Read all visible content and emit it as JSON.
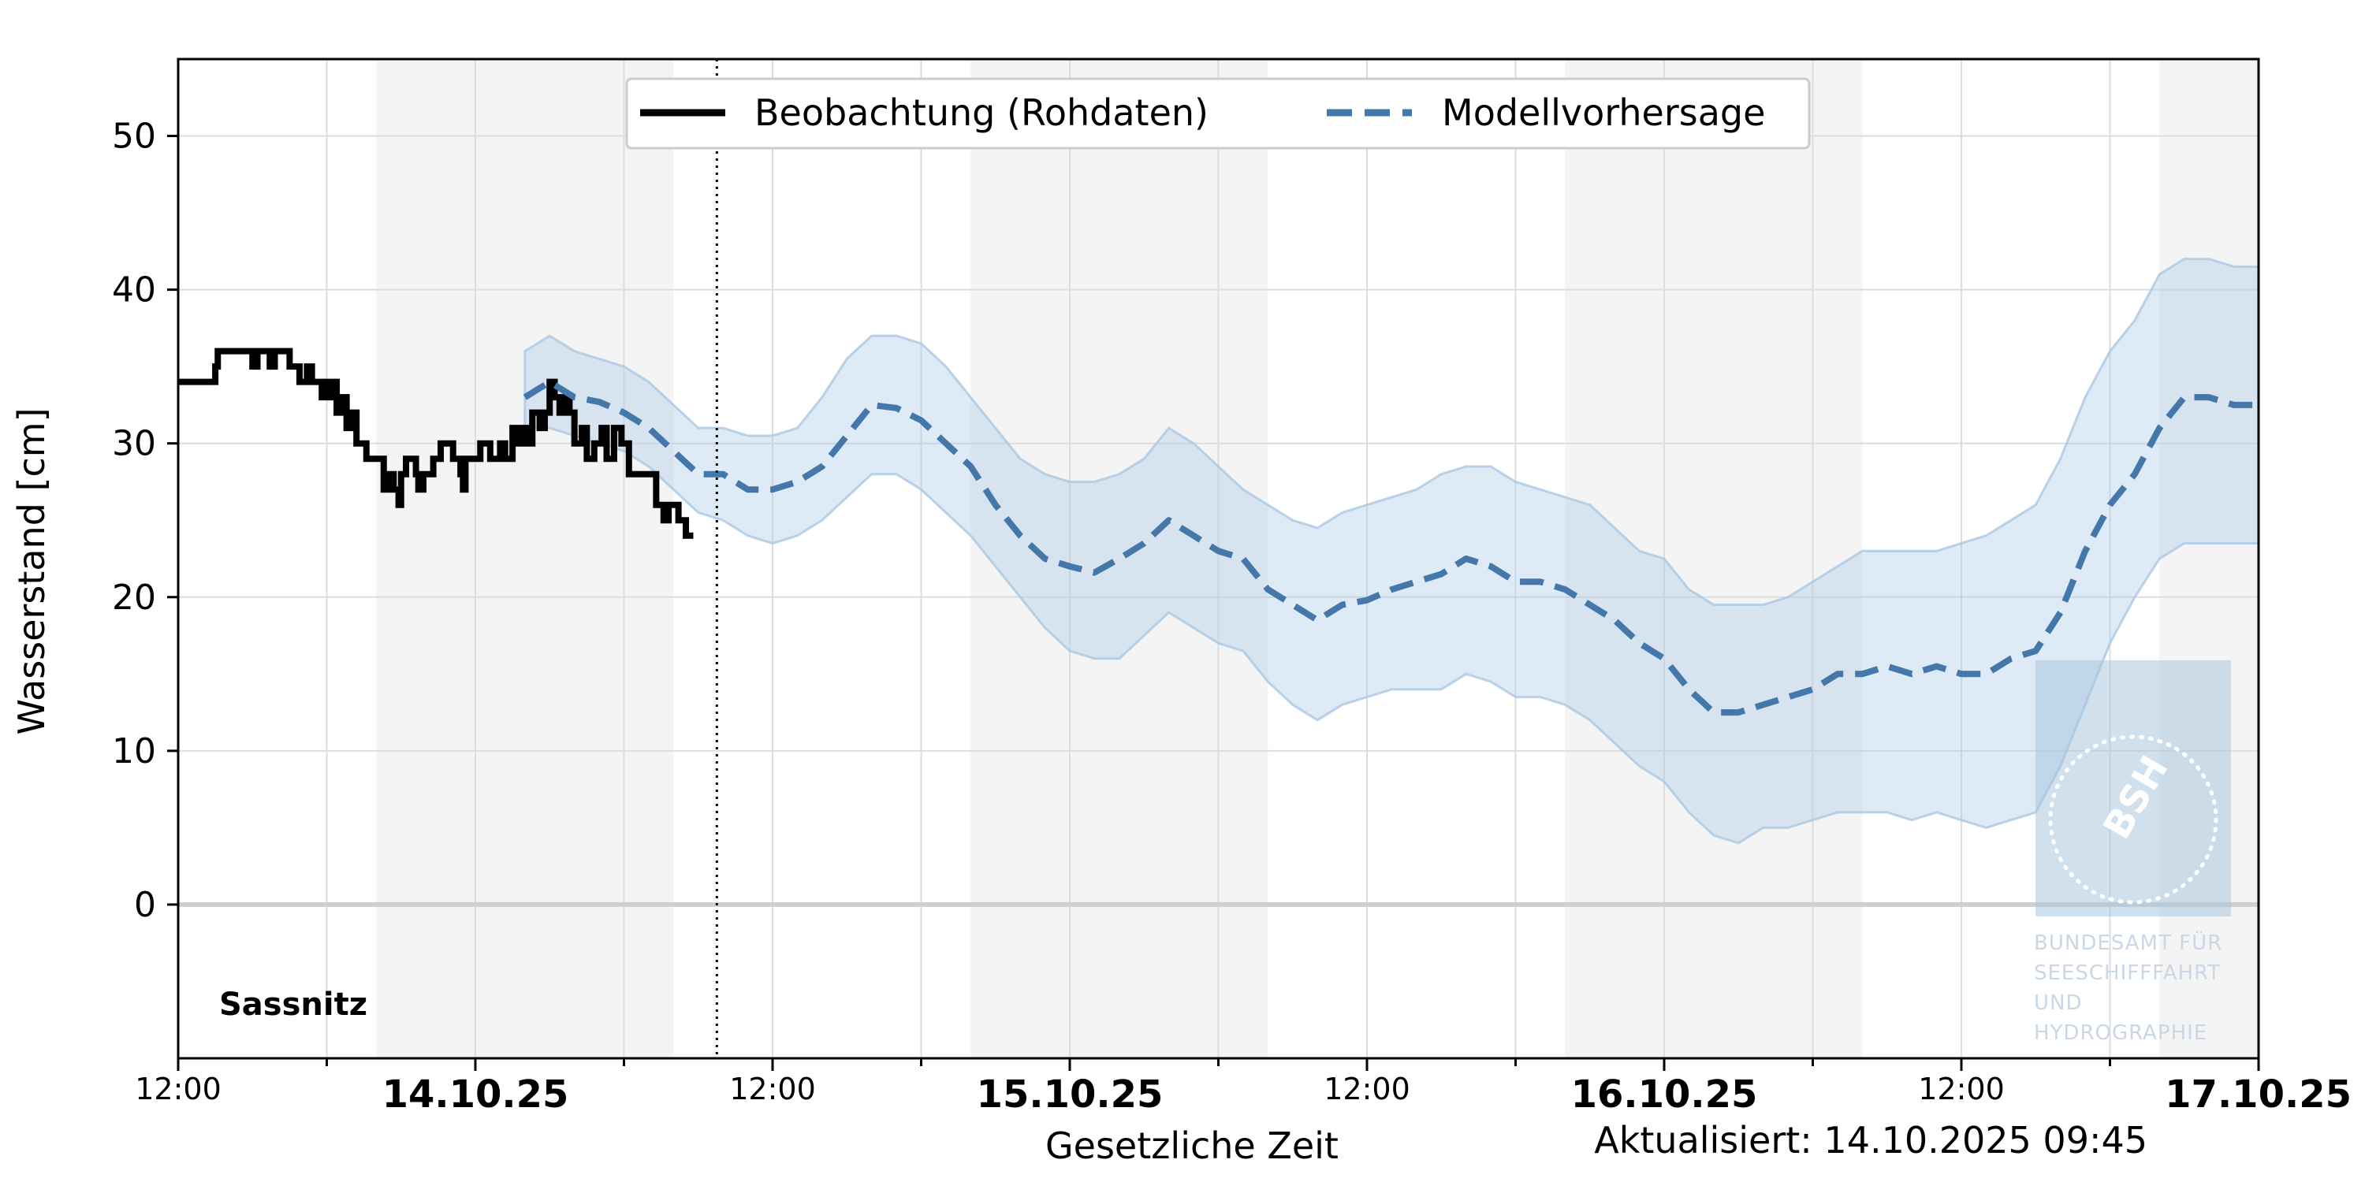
{
  "station": "Sassnitz",
  "updated": "Aktualisiert: 14.10.2025 09:45",
  "watermark": {
    "logo": "BSH",
    "lines": [
      "BUNDESAMT FÜR",
      "SEESCHIFFFAHRT",
      "UND",
      "HYDROGRAPHIE"
    ]
  },
  "colors": {
    "observation": "#000000",
    "forecast": "#4477aa",
    "band": "#a9c8e4",
    "night_shade": "#f4f4f4",
    "grid": "#dddddd",
    "zero_line": "#cfcfcf"
  },
  "chart_data": {
    "type": "line",
    "xlabel": "Gesetzliche Zeit",
    "ylabel": "Wasserstand [cm]",
    "x_unit": "hours since 13.10.2025 12:00",
    "xlim": [
      0,
      84
    ],
    "ylim": [
      -10,
      55
    ],
    "yticks": [
      0,
      10,
      20,
      30,
      40,
      50
    ],
    "xticks": [
      {
        "x": 0,
        "label": "12:00",
        "bold": false
      },
      {
        "x": 12,
        "label": "14.10.25",
        "bold": true
      },
      {
        "x": 24,
        "label": "12:00",
        "bold": false
      },
      {
        "x": 36,
        "label": "15.10.25",
        "bold": true
      },
      {
        "x": 48,
        "label": "12:00",
        "bold": false
      },
      {
        "x": 60,
        "label": "16.10.25",
        "bold": true
      },
      {
        "x": 72,
        "label": "12:00",
        "bold": false
      },
      {
        "x": 84,
        "label": "17.10.25",
        "bold": true
      }
    ],
    "night_periods": [
      [
        8,
        20
      ],
      [
        32,
        44
      ],
      [
        56,
        68
      ],
      [
        80,
        84
      ]
    ],
    "now_line_x": 21.75,
    "legend": {
      "placement": "top-center",
      "entries": [
        "Beobachtung (Rohdaten)",
        "Modellvorhersage"
      ]
    },
    "grid": true,
    "series": [
      {
        "name": "Beobachtung (Rohdaten)",
        "style": "step",
        "points": [
          [
            0,
            34
          ],
          [
            1.4,
            34
          ],
          [
            1.5,
            35
          ],
          [
            1.6,
            36
          ],
          [
            2.9,
            36
          ],
          [
            3,
            35
          ],
          [
            3.2,
            36
          ],
          [
            3.7,
            35
          ],
          [
            3.9,
            36
          ],
          [
            4.5,
            35
          ],
          [
            4.9,
            34
          ],
          [
            5.2,
            35
          ],
          [
            5.4,
            34
          ],
          [
            5.8,
            33
          ],
          [
            6,
            34
          ],
          [
            6.2,
            33
          ],
          [
            6.3,
            34
          ],
          [
            6.4,
            32
          ],
          [
            6.6,
            33
          ],
          [
            6.8,
            31
          ],
          [
            7,
            32
          ],
          [
            7.2,
            30
          ],
          [
            7.6,
            29
          ],
          [
            8.2,
            29
          ],
          [
            8.3,
            27
          ],
          [
            8.5,
            28
          ],
          [
            8.7,
            27
          ],
          [
            8.9,
            26
          ],
          [
            9,
            28
          ],
          [
            9.2,
            29
          ],
          [
            9.6,
            28
          ],
          [
            9.7,
            27
          ],
          [
            9.9,
            28
          ],
          [
            10.3,
            29
          ],
          [
            10.6,
            30
          ],
          [
            11.1,
            29
          ],
          [
            11.4,
            28
          ],
          [
            11.5,
            27
          ],
          [
            11.6,
            29
          ],
          [
            12,
            29
          ],
          [
            12.2,
            30
          ],
          [
            12.6,
            29
          ],
          [
            13,
            30
          ],
          [
            13.2,
            29
          ],
          [
            13.5,
            31
          ],
          [
            13.7,
            30
          ],
          [
            13.9,
            31
          ],
          [
            14.1,
            30
          ],
          [
            14.3,
            32
          ],
          [
            14.6,
            31
          ],
          [
            14.8,
            32
          ],
          [
            15,
            34
          ],
          [
            15.2,
            33
          ],
          [
            15.4,
            32
          ],
          [
            15.6,
            33
          ],
          [
            15.8,
            32
          ],
          [
            16,
            30
          ],
          [
            16.3,
            31
          ],
          [
            16.5,
            29
          ],
          [
            16.8,
            30
          ],
          [
            17.1,
            31
          ],
          [
            17.3,
            29
          ],
          [
            17.6,
            31
          ],
          [
            17.9,
            30
          ],
          [
            18.2,
            28
          ],
          [
            18.7,
            28
          ],
          [
            19.1,
            28
          ],
          [
            19.3,
            26
          ],
          [
            19.6,
            25
          ],
          [
            19.8,
            26
          ],
          [
            20.2,
            25
          ],
          [
            20.5,
            24
          ],
          [
            20.8,
            24
          ]
        ]
      },
      {
        "name": "Modellvorhersage",
        "style": "dashed",
        "points": [
          [
            14,
            33
          ],
          [
            15,
            34
          ],
          [
            16,
            33
          ],
          [
            17,
            32.7
          ],
          [
            18,
            32
          ],
          [
            19,
            31
          ],
          [
            20,
            29.5
          ],
          [
            21,
            28
          ],
          [
            22,
            28
          ],
          [
            23,
            27
          ],
          [
            24,
            27
          ],
          [
            25,
            27.5
          ],
          [
            26,
            28.5
          ],
          [
            27,
            30.5
          ],
          [
            28,
            32.5
          ],
          [
            29,
            32.3
          ],
          [
            30,
            31.5
          ],
          [
            31,
            30
          ],
          [
            32,
            28.5
          ],
          [
            33,
            26
          ],
          [
            34,
            24
          ],
          [
            35,
            22.5
          ],
          [
            36,
            22
          ],
          [
            37,
            21.6
          ],
          [
            38,
            22.5
          ],
          [
            39,
            23.5
          ],
          [
            40,
            25
          ],
          [
            41,
            24
          ],
          [
            42,
            23
          ],
          [
            43,
            22.5
          ],
          [
            44,
            20.5
          ],
          [
            45,
            19.5
          ],
          [
            46,
            18.5
          ],
          [
            47,
            19.5
          ],
          [
            48,
            19.8
          ],
          [
            49,
            20.5
          ],
          [
            50,
            21
          ],
          [
            51,
            21.5
          ],
          [
            52,
            22.5
          ],
          [
            53,
            22
          ],
          [
            54,
            21
          ],
          [
            55,
            21
          ],
          [
            56,
            20.5
          ],
          [
            57,
            19.5
          ],
          [
            58,
            18.5
          ],
          [
            59,
            17
          ],
          [
            60,
            16
          ],
          [
            61,
            14
          ],
          [
            62,
            12.5
          ],
          [
            63,
            12.5
          ],
          [
            64,
            13
          ],
          [
            65,
            13.5
          ],
          [
            66,
            14
          ],
          [
            67,
            15
          ],
          [
            68,
            15
          ],
          [
            69,
            15.5
          ],
          [
            70,
            15
          ],
          [
            71,
            15.5
          ],
          [
            72,
            15
          ],
          [
            73,
            15
          ],
          [
            74,
            16
          ],
          [
            75,
            16.5
          ],
          [
            76,
            19
          ],
          [
            77,
            23
          ],
          [
            78,
            26
          ],
          [
            79,
            28
          ],
          [
            80,
            31
          ],
          [
            81,
            33
          ],
          [
            82,
            33
          ],
          [
            83,
            32.5
          ],
          [
            84,
            32.5
          ]
        ]
      },
      {
        "name": "",
        "style": "band",
        "upper": [
          [
            14,
            36
          ],
          [
            15,
            37
          ],
          [
            16,
            36
          ],
          [
            17,
            35.5
          ],
          [
            18,
            35
          ],
          [
            19,
            34
          ],
          [
            20,
            32.5
          ],
          [
            21,
            31
          ],
          [
            22,
            31
          ],
          [
            23,
            30.5
          ],
          [
            24,
            30.5
          ],
          [
            25,
            31
          ],
          [
            26,
            33
          ],
          [
            27,
            35.5
          ],
          [
            28,
            37
          ],
          [
            29,
            37
          ],
          [
            30,
            36.5
          ],
          [
            31,
            35
          ],
          [
            32,
            33
          ],
          [
            33,
            31
          ],
          [
            34,
            29
          ],
          [
            35,
            28
          ],
          [
            36,
            27.5
          ],
          [
            37,
            27.5
          ],
          [
            38,
            28
          ],
          [
            39,
            29
          ],
          [
            40,
            31
          ],
          [
            41,
            30
          ],
          [
            42,
            28.5
          ],
          [
            43,
            27
          ],
          [
            44,
            26
          ],
          [
            45,
            25
          ],
          [
            46,
            24.5
          ],
          [
            47,
            25.5
          ],
          [
            48,
            26
          ],
          [
            49,
            26.5
          ],
          [
            50,
            27
          ],
          [
            51,
            28
          ],
          [
            52,
            28.5
          ],
          [
            53,
            28.5
          ],
          [
            54,
            27.5
          ],
          [
            55,
            27
          ],
          [
            56,
            26.5
          ],
          [
            57,
            26
          ],
          [
            58,
            24.5
          ],
          [
            59,
            23
          ],
          [
            60,
            22.5
          ],
          [
            61,
            20.5
          ],
          [
            62,
            19.5
          ],
          [
            63,
            19.5
          ],
          [
            64,
            19.5
          ],
          [
            65,
            20
          ],
          [
            66,
            21
          ],
          [
            67,
            22
          ],
          [
            68,
            23
          ],
          [
            69,
            23
          ],
          [
            70,
            23
          ],
          [
            71,
            23
          ],
          [
            72,
            23.5
          ],
          [
            73,
            24
          ],
          [
            74,
            25
          ],
          [
            75,
            26
          ],
          [
            76,
            29
          ],
          [
            77,
            33
          ],
          [
            78,
            36
          ],
          [
            79,
            38
          ],
          [
            80,
            41
          ],
          [
            81,
            42
          ],
          [
            82,
            42
          ],
          [
            83,
            41.5
          ],
          [
            84,
            41.5
          ]
        ],
        "lower": [
          [
            14,
            31
          ],
          [
            15,
            31
          ],
          [
            16,
            30.5
          ],
          [
            17,
            30
          ],
          [
            18,
            29.5
          ],
          [
            19,
            28.5
          ],
          [
            20,
            27
          ],
          [
            21,
            25.5
          ],
          [
            22,
            25
          ],
          [
            23,
            24
          ],
          [
            24,
            23.5
          ],
          [
            25,
            24
          ],
          [
            26,
            25
          ],
          [
            27,
            26.5
          ],
          [
            28,
            28
          ],
          [
            29,
            28
          ],
          [
            30,
            27
          ],
          [
            31,
            25.5
          ],
          [
            32,
            24
          ],
          [
            33,
            22
          ],
          [
            34,
            20
          ],
          [
            35,
            18
          ],
          [
            36,
            16.5
          ],
          [
            37,
            16
          ],
          [
            38,
            16
          ],
          [
            39,
            17.5
          ],
          [
            40,
            19
          ],
          [
            41,
            18
          ],
          [
            42,
            17
          ],
          [
            43,
            16.5
          ],
          [
            44,
            14.5
          ],
          [
            45,
            13
          ],
          [
            46,
            12
          ],
          [
            47,
            13
          ],
          [
            48,
            13.5
          ],
          [
            49,
            14
          ],
          [
            50,
            14
          ],
          [
            51,
            14
          ],
          [
            52,
            15
          ],
          [
            53,
            14.5
          ],
          [
            54,
            13.5
          ],
          [
            55,
            13.5
          ],
          [
            56,
            13
          ],
          [
            57,
            12
          ],
          [
            58,
            10.5
          ],
          [
            59,
            9
          ],
          [
            60,
            8
          ],
          [
            61,
            6
          ],
          [
            62,
            4.5
          ],
          [
            63,
            4
          ],
          [
            64,
            5
          ],
          [
            65,
            5
          ],
          [
            66,
            5.5
          ],
          [
            67,
            6
          ],
          [
            68,
            6
          ],
          [
            69,
            6
          ],
          [
            70,
            5.5
          ],
          [
            71,
            6
          ],
          [
            72,
            5.5
          ],
          [
            73,
            5
          ],
          [
            74,
            5.5
          ],
          [
            75,
            6
          ],
          [
            76,
            9
          ],
          [
            77,
            13
          ],
          [
            78,
            17
          ],
          [
            79,
            20
          ],
          [
            80,
            22.5
          ],
          [
            81,
            23.5
          ],
          [
            82,
            23.5
          ],
          [
            83,
            23.5
          ],
          [
            84,
            23.5
          ]
        ]
      }
    ]
  }
}
